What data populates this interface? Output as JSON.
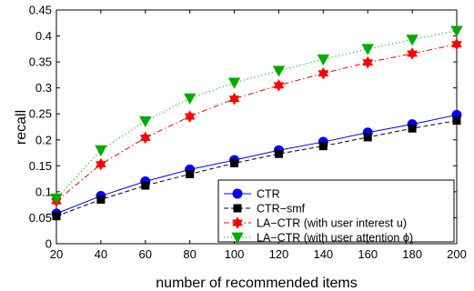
{
  "chart_data": {
    "type": "line",
    "title": "",
    "xlabel": "number of recommended items",
    "ylabel": "recall",
    "xlim": [
      20,
      200
    ],
    "ylim": [
      0,
      0.45
    ],
    "grid": false,
    "legend_position": "bottom-right",
    "x": [
      20,
      40,
      60,
      80,
      100,
      120,
      140,
      160,
      180,
      200
    ],
    "x_ticks": [
      "20",
      "40",
      "60",
      "80",
      "100",
      "120",
      "140",
      "160",
      "180",
      "200"
    ],
    "y_ticks": [
      "0",
      "0.05",
      "0.1",
      "0.15",
      "0.2",
      "0.25",
      "0.3",
      "0.35",
      "0.4",
      "0.45"
    ],
    "series": [
      {
        "name": "CTR",
        "color": "#0000ff",
        "line_style": "solid",
        "marker": "circle",
        "values": [
          0.058,
          0.092,
          0.12,
          0.143,
          0.161,
          0.18,
          0.196,
          0.214,
          0.23,
          0.248
        ]
      },
      {
        "name": "CTR−smf",
        "color": "#000000",
        "line_style": "dashed",
        "marker": "square",
        "values": [
          0.053,
          0.085,
          0.112,
          0.134,
          0.155,
          0.173,
          0.188,
          0.205,
          0.222,
          0.237
        ]
      },
      {
        "name": "LA−CTR (with user interest u)",
        "color": "#ff0000",
        "line_style": "dashdot",
        "marker": "hexagram",
        "values": [
          0.082,
          0.153,
          0.204,
          0.245,
          0.279,
          0.305,
          0.328,
          0.349,
          0.366,
          0.384
        ]
      },
      {
        "name": "LA−CTR (with user attention ϕ)",
        "color": "#00aa00",
        "line_style": "dotted",
        "marker": "triangle-down",
        "values": [
          0.087,
          0.18,
          0.236,
          0.28,
          0.31,
          0.333,
          0.355,
          0.375,
          0.393,
          0.41
        ]
      }
    ]
  }
}
